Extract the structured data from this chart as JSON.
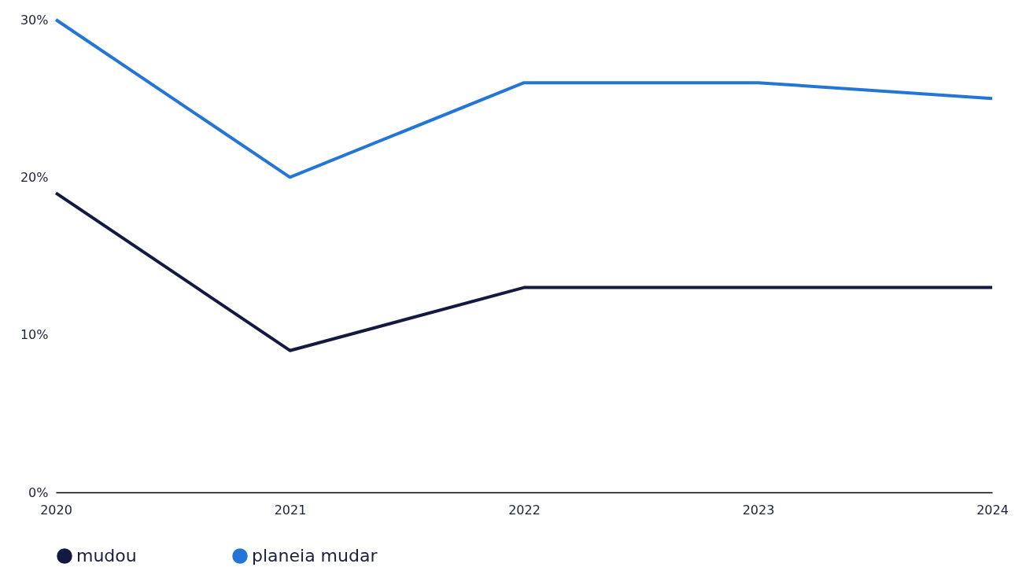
{
  "chart_data": {
    "type": "line",
    "categories": [
      "2020",
      "2021",
      "2022",
      "2023",
      "2024"
    ],
    "series": [
      {
        "name": "mudou",
        "color": "#141a3f",
        "values": [
          19,
          9,
          13,
          13,
          13
        ]
      },
      {
        "name": "planeia mudar",
        "color": "#2375d6",
        "values": [
          30,
          20,
          26,
          26,
          25
        ]
      }
    ],
    "ylim": [
      0,
      30
    ],
    "yticks": [
      {
        "value": 0,
        "label": "0%"
      },
      {
        "value": 10,
        "label": "10%"
      },
      {
        "value": 20,
        "label": "20%"
      },
      {
        "value": 30,
        "label": "30%"
      }
    ],
    "grid": false,
    "legend": "bottom",
    "marker": "none",
    "line_style": "solid"
  }
}
